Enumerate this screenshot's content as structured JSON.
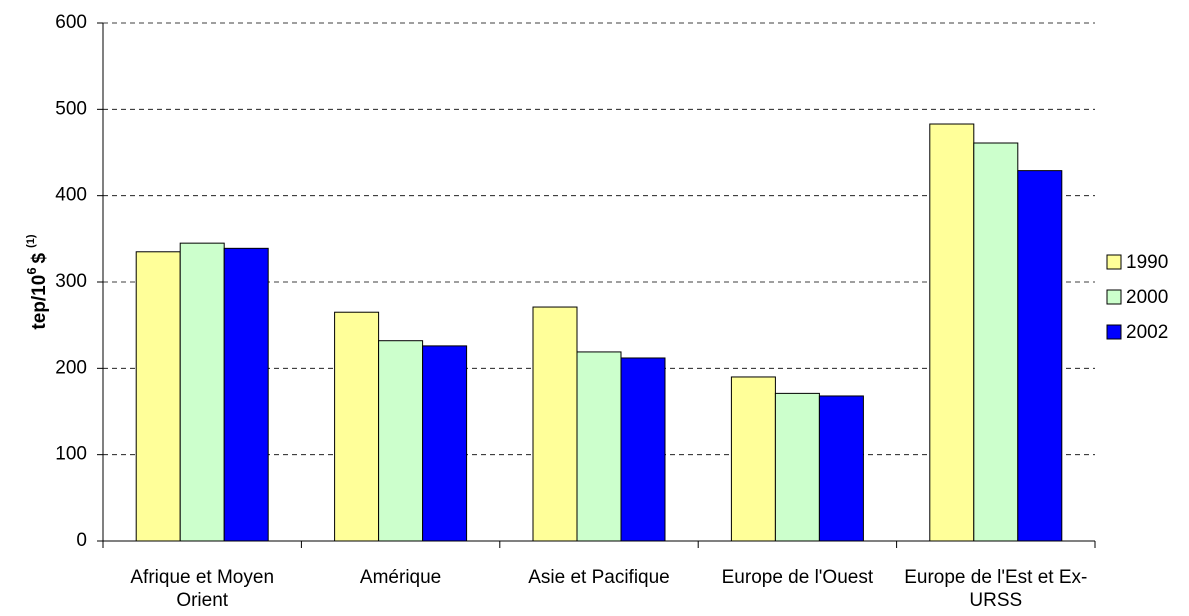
{
  "chart_data": {
    "type": "bar",
    "y_label": {
      "base": "tep/10",
      "exponent": "6",
      "unit": "$",
      "note": "(1)"
    },
    "categories": [
      "Afrique et Moyen Orient",
      "Amérique",
      "Asie et Pacifique",
      "Europe de l'Ouest",
      "Europe de l'Est et Ex-URSS"
    ],
    "series": [
      {
        "name": "1990",
        "color": "#ffff99",
        "values": [
          335,
          265,
          271,
          190,
          483
        ]
      },
      {
        "name": "2000",
        "color": "#ccffcc",
        "values": [
          345,
          232,
          219,
          171,
          461
        ]
      },
      {
        "name": "2002",
        "color": "#0000ff",
        "values": [
          339,
          226,
          212,
          168,
          429
        ]
      }
    ],
    "ylim": [
      0,
      600
    ],
    "yticks": [
      0,
      100,
      200,
      300,
      400,
      500,
      600
    ],
    "grid": true,
    "legend": "right"
  }
}
